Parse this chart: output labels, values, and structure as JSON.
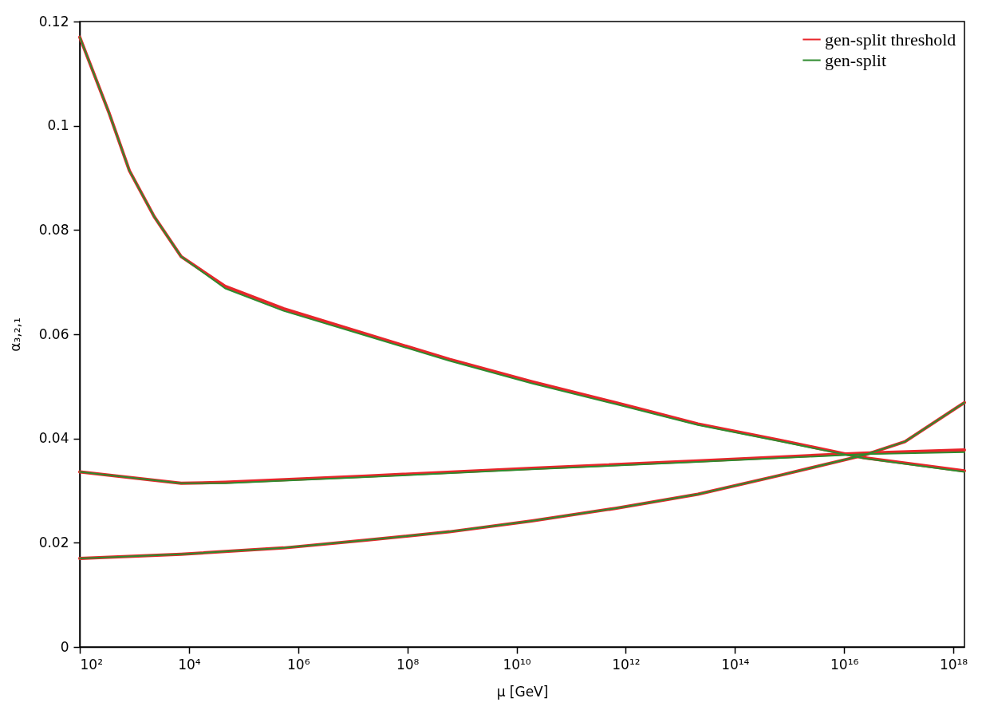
{
  "chart_data": {
    "type": "line",
    "xlabel": "μ [GeV]",
    "ylabel": "α₃,₂,₁",
    "log": "x",
    "xlim": [
      100,
      1.6e+18
    ],
    "xticks": [
      {
        "value": 100.0,
        "label": "10²"
      },
      {
        "value": 10000.0,
        "label": "10⁴"
      },
      {
        "value": 1000000.0,
        "label": "10⁶"
      },
      {
        "value": 100000000.0,
        "label": "10⁸"
      },
      {
        "value": 10000000000.0,
        "label": "10¹⁰"
      },
      {
        "value": 1000000000000.0,
        "label": "10¹²"
      },
      {
        "value": 100000000000000.0,
        "label": "10¹⁴"
      },
      {
        "value": 1e+16,
        "label": "10¹⁶"
      },
      {
        "value": 1e+18,
        "label": "10¹⁸"
      }
    ],
    "ylim": [
      0,
      0.12
    ],
    "yticks": [
      0,
      0.02,
      0.04,
      0.06,
      0.08,
      0.1,
      0.12
    ],
    "grid": false,
    "legend": "top right",
    "marker": "none",
    "line_style": "solid",
    "series": [
      {
        "name": "gen-split threshold",
        "color": "#e8262b",
        "x": [
          100.0,
          340.0,
          810.0,
          2300.0,
          7200.0,
          46000.0,
          540000.0,
          18000000.0,
          590000000.0,
          19000000000.0,
          650000000000.0,
          21000000000000.0,
          710000000000000.0,
          2.3e+16,
          1.6e+18
        ],
        "values": [
          0.117,
          0.1026,
          0.0914,
          0.0826,
          0.0749,
          0.0692,
          0.0649,
          0.06,
          0.0552,
          0.0509,
          0.0469,
          0.0428,
          0.0396,
          0.0363,
          0.0338
        ]
      },
      {
        "color": "#e8262b",
        "x": [
          100.0,
          480.0,
          7200.0,
          46000.0,
          18000000.0,
          19000000000.0,
          21000000000000.0,
          2.3e+16,
          1.6e+18
        ],
        "values": [
          0.0336,
          0.0328,
          0.0314,
          0.0316,
          0.0328,
          0.0343,
          0.0357,
          0.0372,
          0.0378
        ]
      },
      {
        "color": "#e8262b",
        "x": [
          100.0,
          7200.0,
          540000.0,
          18000000.0,
          590000000.0,
          19000000000.0,
          650000000000.0,
          21000000000000.0,
          710000000000000.0,
          2.3e+16,
          1.3e+17,
          1.6e+18
        ],
        "values": [
          0.017,
          0.0178,
          0.019,
          0.0205,
          0.0221,
          0.0242,
          0.0266,
          0.0293,
          0.033,
          0.0368,
          0.0394,
          0.0469
        ]
      },
      {
        "name": "gen-split",
        "color": "#2e8b2e",
        "x": [
          100.0,
          340.0,
          810.0,
          2300.0,
          7200.0,
          46000.0,
          540000.0,
          18000000.0,
          590000000.0,
          19000000000.0,
          650000000000.0,
          21000000000000.0,
          710000000000000.0,
          2.3e+16,
          1.6e+18
        ],
        "values": [
          0.117,
          0.1026,
          0.0914,
          0.0826,
          0.0749,
          0.0688,
          0.0645,
          0.0597,
          0.0549,
          0.0506,
          0.0466,
          0.0426,
          0.0394,
          0.0362,
          0.0336
        ]
      },
      {
        "color": "#2e8b2e",
        "x": [
          100.0,
          480.0,
          7200.0,
          46000.0,
          18000000.0,
          19000000000.0,
          21000000000000.0,
          2.3e+16,
          1.6e+18
        ],
        "values": [
          0.0336,
          0.0328,
          0.0314,
          0.0314,
          0.0326,
          0.0341,
          0.0355,
          0.037,
          0.0374
        ]
      },
      {
        "color": "#2e8b2e",
        "x": [
          100.0,
          7200.0,
          540000.0,
          18000000.0,
          590000000.0,
          19000000000.0,
          650000000000.0,
          21000000000000.0,
          710000000000000.0,
          2.3e+16,
          1.3e+17,
          1.6e+18
        ],
        "values": [
          0.017,
          0.0178,
          0.019,
          0.0205,
          0.0221,
          0.0242,
          0.0266,
          0.0293,
          0.033,
          0.0368,
          0.0394,
          0.0469
        ]
      }
    ]
  }
}
